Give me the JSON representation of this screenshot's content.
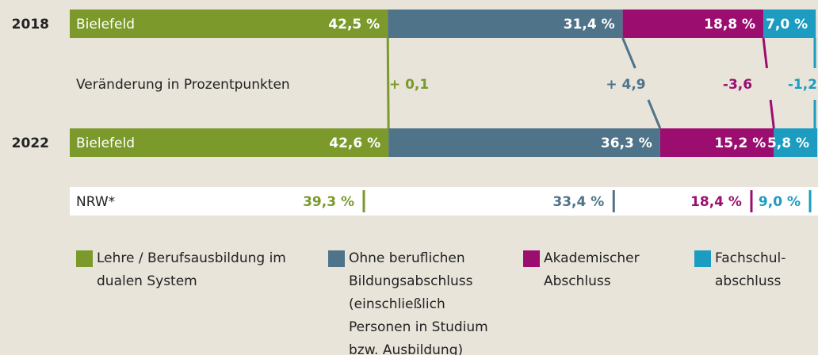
{
  "chart_data": {
    "type": "bar",
    "stacked": true,
    "orientation": "horizontal",
    "xlim": [
      0,
      100
    ],
    "categories": [
      "2018",
      "2022"
    ],
    "bar_labels": [
      "Bielefeld",
      "Bielefeld"
    ],
    "series": [
      {
        "name": "Lehre / Berufsausbildung im dualen System",
        "color": "#7b9a2b",
        "values": [
          42.5,
          42.6
        ],
        "value_labels": [
          "42,5 %",
          "42,6 %"
        ]
      },
      {
        "name": "Ohne beruflichen Bildungsabschluss (einschließlich Personen in Studium bzw. Ausbildung)",
        "color": "#4f7389",
        "values": [
          31.4,
          36.3
        ],
        "value_labels": [
          "31,4 %",
          "36,3 %"
        ]
      },
      {
        "name": "Akademischer Abschluss",
        "color": "#9b0e6f",
        "values": [
          18.8,
          15.2
        ],
        "value_labels": [
          "18,8 %",
          "15,2 %"
        ]
      },
      {
        "name": "Fachschul-abschluss",
        "color": "#1b9cc0",
        "values": [
          7.0,
          5.8
        ],
        "value_labels": [
          "7,0 %",
          "5,8 %"
        ]
      }
    ],
    "change_label": "Veränderung in Prozentpunkten",
    "changes": [
      {
        "value": 0.1,
        "label": "+ 0,1"
      },
      {
        "value": 4.9,
        "label": "+ 4,9"
      },
      {
        "value": -3.6,
        "label": "-3,6"
      },
      {
        "value": -1.2,
        "label": "-1,2"
      }
    ],
    "reference": {
      "label": "NRW*",
      "values": [
        39.3,
        33.4,
        18.4,
        9.0
      ],
      "value_labels": [
        "39,3 %",
        "33,4 %",
        "18,4 %",
        "9,0 %"
      ]
    }
  }
}
